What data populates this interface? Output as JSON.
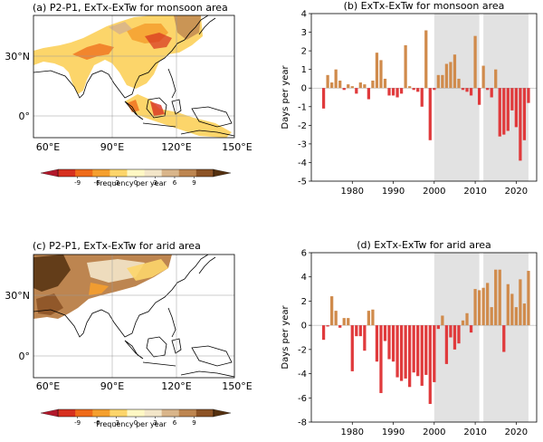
{
  "panels": {
    "a": {
      "title": "(a) P2-P1, ExTx-ExTw for monsoon area",
      "lat_labels": [
        "30°N",
        "0°"
      ],
      "lon_labels": [
        "60°E",
        "90°E",
        "120°E",
        "150°E"
      ],
      "colorbar_label": "Frequency per year",
      "colorbar_ticks": [
        "-9",
        "-6",
        "-3",
        "0",
        "3",
        "6",
        "9"
      ]
    },
    "c": {
      "title": "(c) P2-P1, ExTx-ExTw for arid area",
      "lat_labels": [
        "30°N",
        "0°"
      ],
      "lon_labels": [
        "60°E",
        "90°E",
        "120°E",
        "150°E"
      ],
      "colorbar_label": "Frequency per year",
      "colorbar_ticks": [
        "-9",
        "-6",
        "-3",
        "0",
        "3",
        "6",
        "9"
      ]
    }
  },
  "colorbar_colors": [
    "#b2182b",
    "#d7301f",
    "#ef6b1a",
    "#f59f2e",
    "#fcd56a",
    "#fff8c4",
    "#f3e6c9",
    "#d9b58a",
    "#bd8550",
    "#8c5326",
    "#54300f"
  ],
  "colors": {
    "positive": "#d08b4c",
    "negative": "#e03a3c",
    "shade": "#e2e2e2"
  },
  "chart_data": [
    {
      "id": "b",
      "type": "bar",
      "title": "(b) ExTx-ExTw for monsoon area",
      "ylabel": "Days per year",
      "xlabel": "",
      "xlim": [
        1970,
        2025
      ],
      "ylim": [
        -5,
        4
      ],
      "yticks": [
        -5,
        -4,
        -3,
        -2,
        -1,
        0,
        1,
        2,
        3,
        4
      ],
      "xticks": [
        1980,
        1990,
        2000,
        2010,
        2020
      ],
      "shaded_ranges": [
        [
          2000,
          2011
        ],
        [
          2012,
          2023
        ]
      ],
      "years": [
        1973,
        1974,
        1975,
        1976,
        1977,
        1978,
        1979,
        1980,
        1981,
        1982,
        1983,
        1984,
        1985,
        1986,
        1987,
        1988,
        1989,
        1990,
        1991,
        1992,
        1993,
        1994,
        1995,
        1996,
        1997,
        1998,
        1999,
        2000,
        2001,
        2002,
        2003,
        2004,
        2005,
        2006,
        2007,
        2008,
        2009,
        2010,
        2011,
        2012,
        2013,
        2014,
        2015,
        2016,
        2017,
        2018,
        2019,
        2020,
        2021,
        2022,
        2023
      ],
      "values": [
        -1.1,
        0.7,
        0.3,
        1.0,
        0.4,
        -0.1,
        0.2,
        0.1,
        -0.3,
        0.3,
        0.2,
        -0.6,
        0.4,
        1.9,
        1.5,
        0.5,
        -0.4,
        -0.4,
        -0.5,
        -0.3,
        2.3,
        0.1,
        -0.1,
        -0.2,
        -1.0,
        3.1,
        -2.8,
        -0.1,
        0.7,
        0.7,
        1.3,
        1.4,
        1.8,
        0.5,
        -0.1,
        -0.2,
        -0.4,
        2.8,
        -0.9,
        1.2,
        -0.1,
        -0.5,
        1.0,
        -2.6,
        -2.5,
        -2.3,
        -1.2,
        -2.1,
        -3.9,
        -2.8,
        -0.8
      ]
    },
    {
      "id": "d",
      "type": "bar",
      "title": "(d) ExTx-ExTw for arid area",
      "ylabel": "Days per year",
      "xlabel": "",
      "xlim": [
        1970,
        2025
      ],
      "ylim": [
        -8,
        6
      ],
      "yticks": [
        -8,
        -6,
        -4,
        -2,
        0,
        2,
        4,
        6
      ],
      "xticks": [
        1980,
        1990,
        2000,
        2010,
        2020
      ],
      "shaded_ranges": [
        [
          2000,
          2011
        ],
        [
          2012,
          2023
        ]
      ],
      "years": [
        1973,
        1974,
        1975,
        1976,
        1977,
        1978,
        1979,
        1980,
        1981,
        1982,
        1983,
        1984,
        1985,
        1986,
        1987,
        1988,
        1989,
        1990,
        1991,
        1992,
        1993,
        1994,
        1995,
        1996,
        1997,
        1998,
        1999,
        2000,
        2001,
        2002,
        2003,
        2004,
        2005,
        2006,
        2007,
        2008,
        2009,
        2010,
        2011,
        2012,
        2013,
        2014,
        2015,
        2016,
        2017,
        2018,
        2019,
        2020,
        2021,
        2022,
        2023
      ],
      "values": [
        -1.2,
        -0.1,
        2.4,
        1.2,
        -0.2,
        0.6,
        0.6,
        -3.8,
        -0.9,
        -0.9,
        -2.1,
        1.2,
        1.3,
        -3.0,
        -5.6,
        -1.3,
        -2.8,
        -3.0,
        -4.3,
        -4.6,
        -4.4,
        -5.1,
        -3.9,
        -4.2,
        -5.0,
        -4.1,
        -6.5,
        -4.7,
        -0.3,
        0.8,
        -3.2,
        -1.0,
        -2.0,
        -1.5,
        0.4,
        1.0,
        -0.6,
        3.0,
        2.9,
        3.1,
        3.5,
        1.5,
        4.6,
        4.6,
        -2.2,
        3.4,
        2.6,
        1.5,
        3.8,
        1.8,
        4.5
      ]
    }
  ]
}
